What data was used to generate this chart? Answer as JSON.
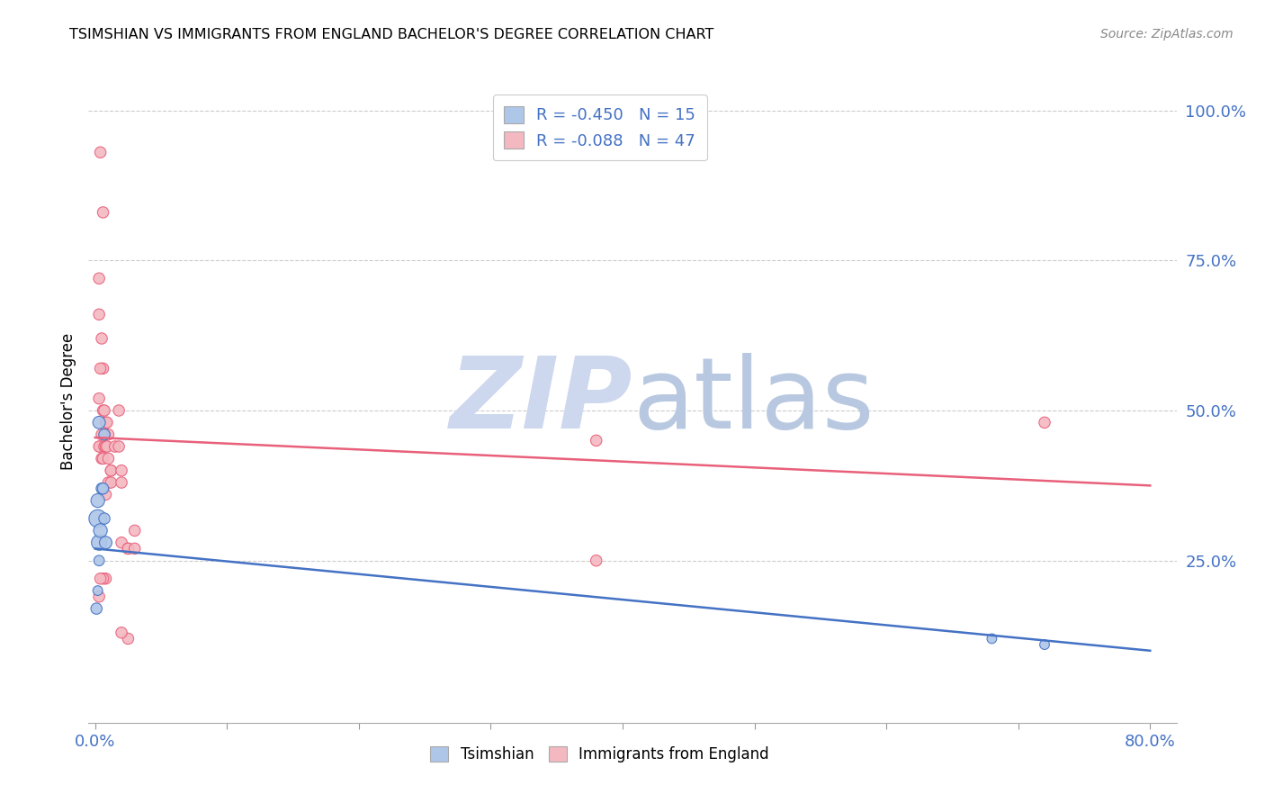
{
  "title": "TSIMSHIAN VS IMMIGRANTS FROM ENGLAND BACHELOR'S DEGREE CORRELATION CHART",
  "source": "Source: ZipAtlas.com",
  "ylabel": "Bachelor's Degree",
  "right_yticks": [
    "100.0%",
    "75.0%",
    "50.0%",
    "25.0%"
  ],
  "right_ytick_vals": [
    1.0,
    0.75,
    0.5,
    0.25
  ],
  "legend1_label": "R = -0.450   N = 15",
  "legend2_label": "R = -0.088   N = 47",
  "tsimshian_color": "#aec6e8",
  "england_color": "#f4b8c1",
  "tsimshian_line_color": "#4472c4",
  "england_line_color": "#e8607a",
  "watermark_zip_color": "#c0cfe8",
  "watermark_atlas_color": "#b8c8e0",
  "tsimshian_x": [
    0.001,
    0.002,
    0.003,
    0.002,
    0.003,
    0.004,
    0.005,
    0.006,
    0.007,
    0.008,
    0.007,
    0.003,
    0.002,
    0.68,
    0.72
  ],
  "tsimshian_y": [
    0.17,
    0.2,
    0.25,
    0.32,
    0.28,
    0.3,
    0.37,
    0.37,
    0.32,
    0.28,
    0.46,
    0.48,
    0.35,
    0.12,
    0.11
  ],
  "tsimshian_size": [
    80,
    60,
    70,
    200,
    150,
    120,
    80,
    80,
    80,
    100,
    80,
    100,
    120,
    60,
    60
  ],
  "england_x": [
    0.004,
    0.006,
    0.003,
    0.003,
    0.005,
    0.006,
    0.004,
    0.003,
    0.006,
    0.007,
    0.008,
    0.009,
    0.01,
    0.007,
    0.005,
    0.004,
    0.003,
    0.005,
    0.006,
    0.007,
    0.008,
    0.009,
    0.01,
    0.012,
    0.015,
    0.018,
    0.012,
    0.01,
    0.008,
    0.018,
    0.02,
    0.012,
    0.008,
    0.006,
    0.004,
    0.003,
    0.02,
    0.025,
    0.02,
    0.025,
    0.03,
    0.38,
    0.72,
    0.38,
    0.03,
    0.025,
    0.02
  ],
  "england_y": [
    0.93,
    0.83,
    0.72,
    0.66,
    0.62,
    0.57,
    0.57,
    0.52,
    0.5,
    0.5,
    0.48,
    0.48,
    0.46,
    0.46,
    0.46,
    0.44,
    0.44,
    0.42,
    0.42,
    0.44,
    0.44,
    0.44,
    0.42,
    0.4,
    0.44,
    0.5,
    0.4,
    0.38,
    0.36,
    0.44,
    0.4,
    0.38,
    0.22,
    0.22,
    0.22,
    0.19,
    0.28,
    0.27,
    0.38,
    0.27,
    0.27,
    0.45,
    0.48,
    0.25,
    0.3,
    0.12,
    0.13
  ],
  "england_size": [
    80,
    80,
    80,
    80,
    80,
    80,
    80,
    80,
    80,
    80,
    80,
    80,
    80,
    80,
    80,
    80,
    80,
    80,
    80,
    80,
    80,
    80,
    80,
    80,
    80,
    80,
    80,
    80,
    80,
    80,
    80,
    80,
    80,
    80,
    80,
    80,
    80,
    80,
    80,
    80,
    80,
    80,
    80,
    80,
    80,
    80,
    80
  ],
  "xlim": [
    -0.005,
    0.82
  ],
  "ylim": [
    -0.02,
    1.05
  ],
  "xtick_positions": [
    0.0,
    0.1,
    0.2,
    0.3,
    0.4,
    0.5,
    0.6,
    0.7,
    0.8
  ],
  "xtick_labels_show": [
    "0.0%",
    "",
    "",
    "",
    "",
    "",
    "",
    "",
    "80.0%"
  ]
}
